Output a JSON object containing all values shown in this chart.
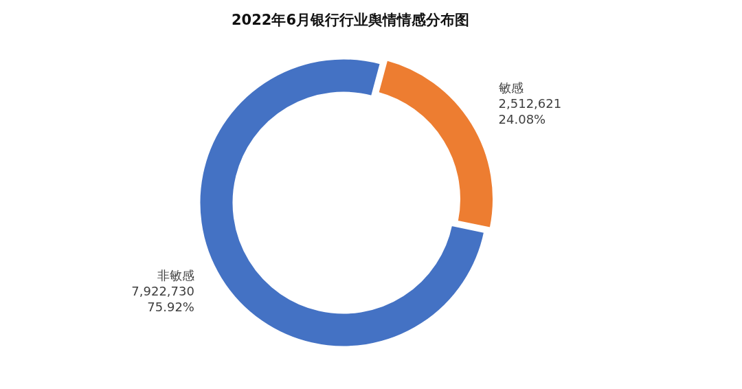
{
  "chart_data": {
    "type": "donut",
    "title": "2022年6月银行行业舆情情感分布图",
    "categories": [
      "敏感",
      "非敏感"
    ],
    "values": [
      2512621,
      7922730
    ],
    "value_labels": [
      "2,512,621\n24.08%",
      "7,922,730\n75.92%"
    ],
    "colors": [
      "#ed7d31",
      "#4472c4"
    ],
    "legend": false
  }
}
